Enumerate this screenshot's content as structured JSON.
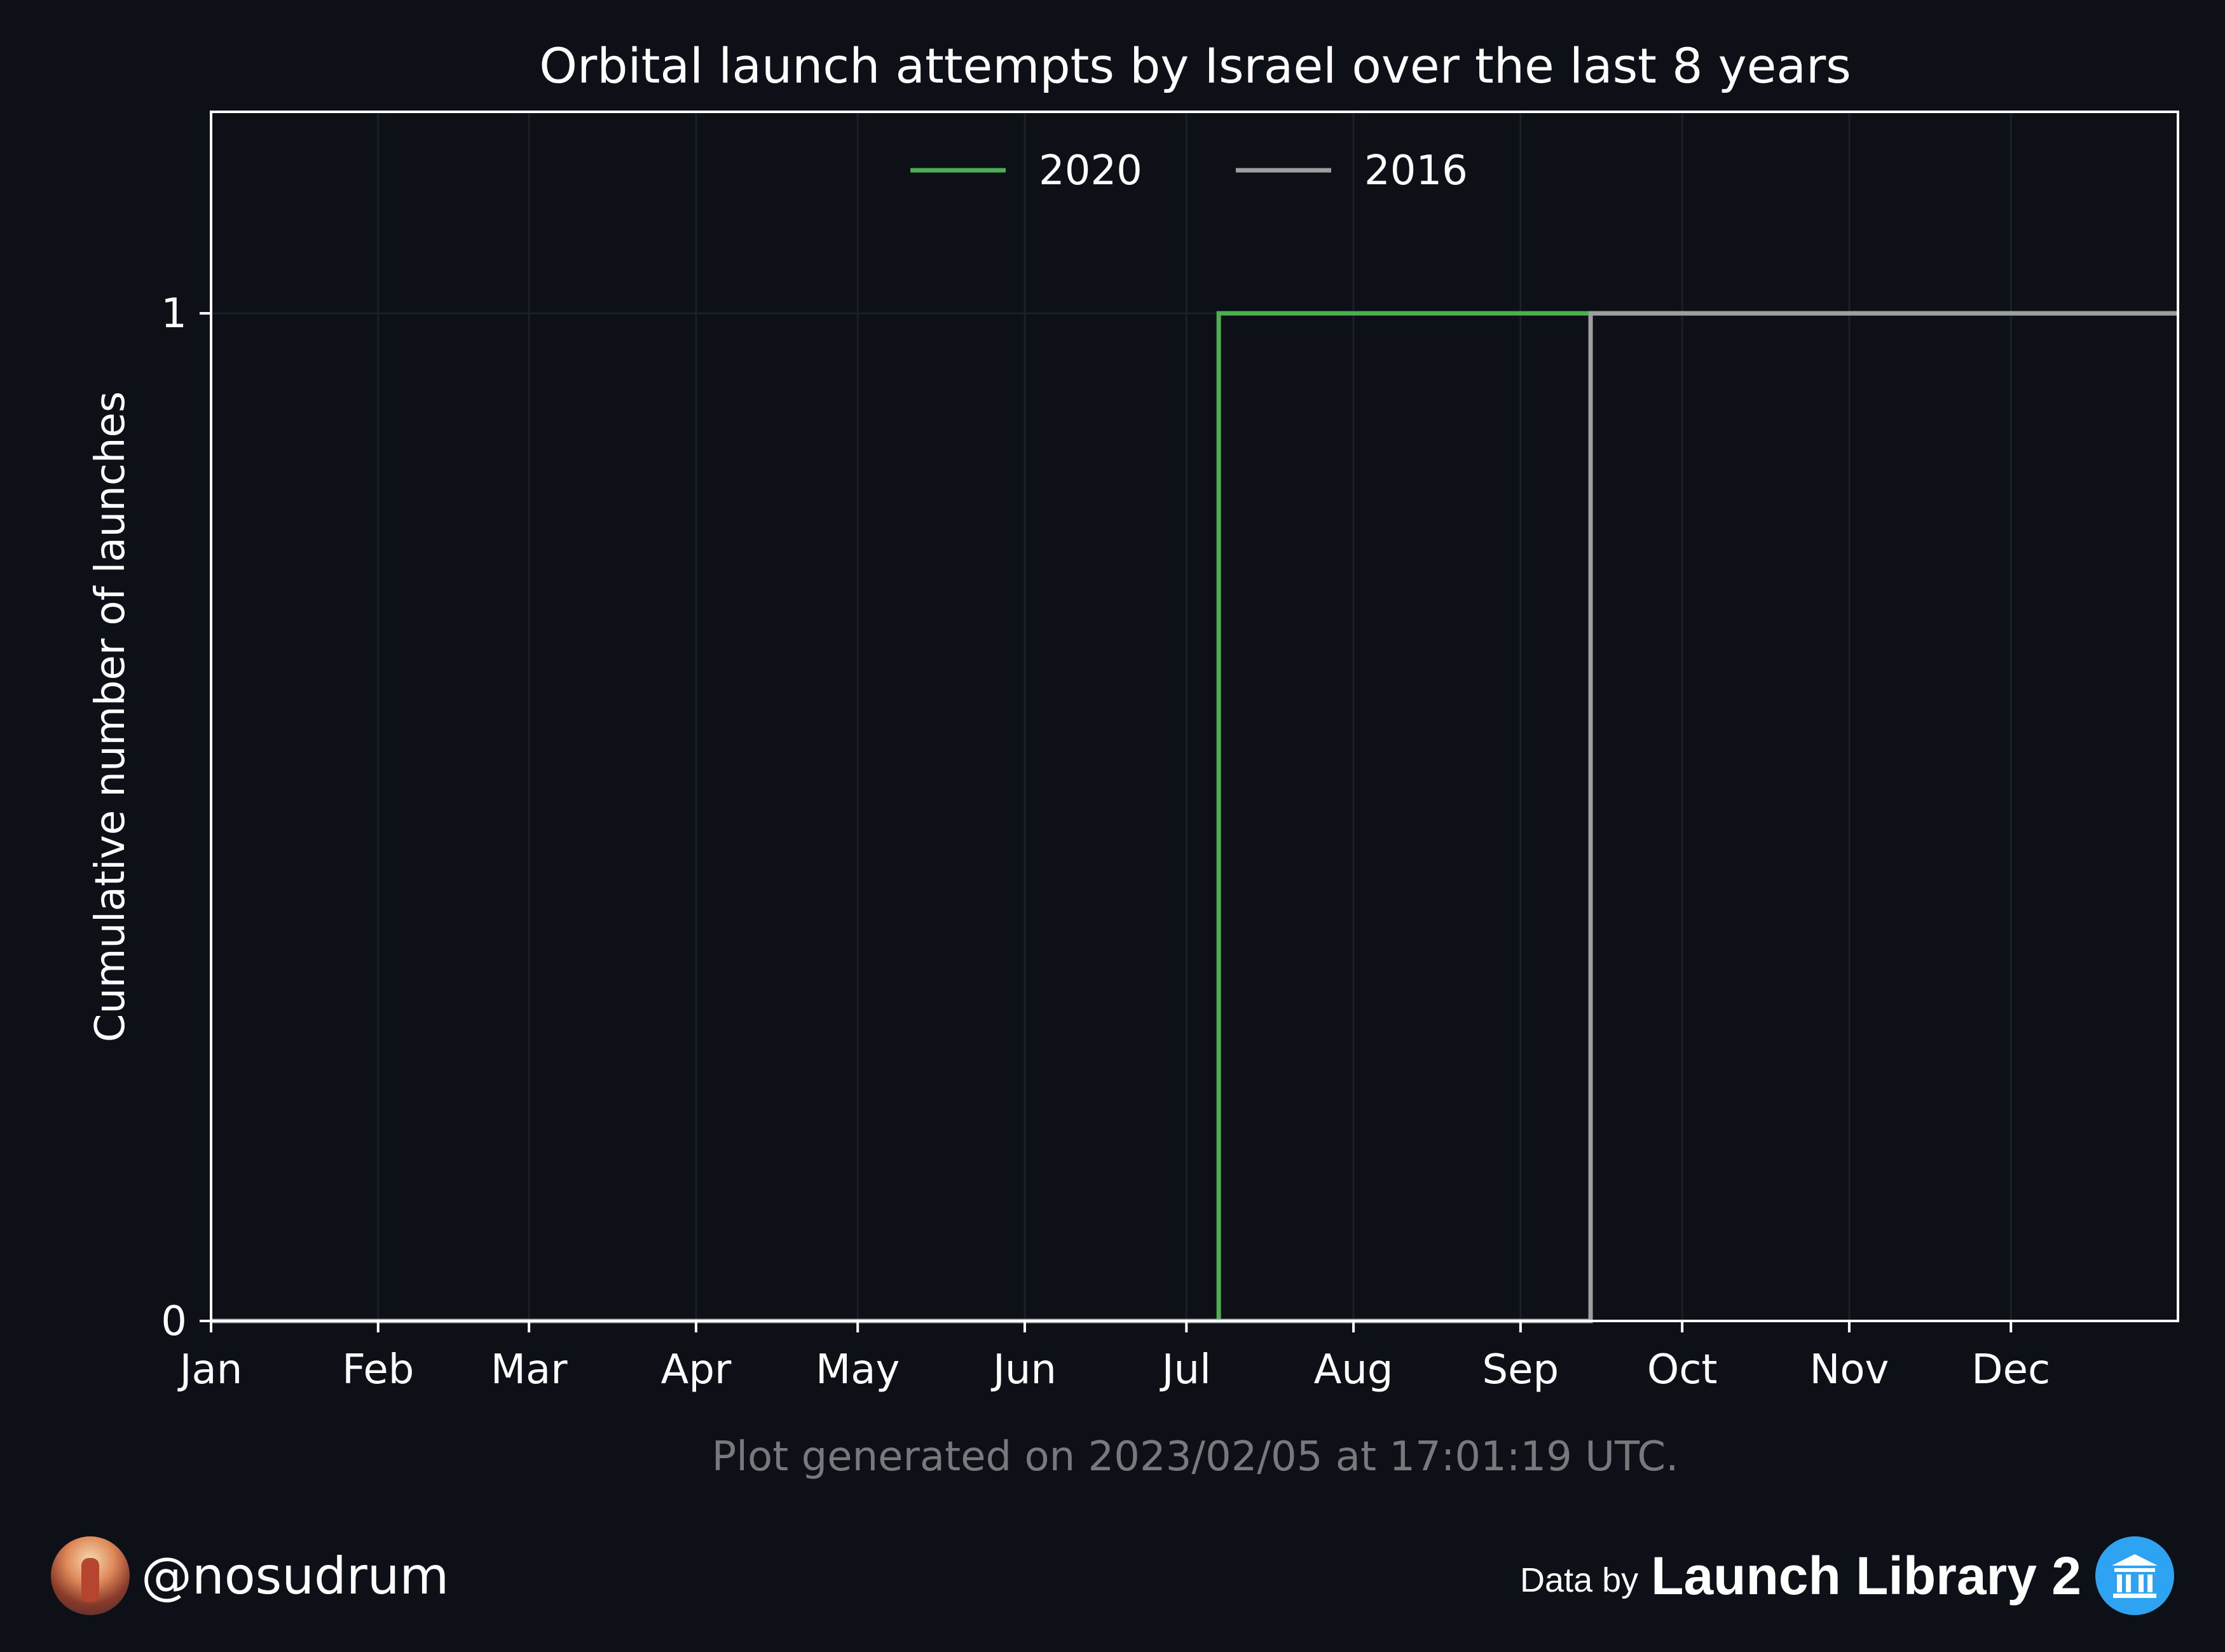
{
  "chart_data": {
    "type": "line",
    "step": true,
    "title": "Orbital launch attempts by Israel over the last 8 years",
    "xlabel": "",
    "ylabel": "Cumulative number of launches",
    "x_ticks": [
      "Jan",
      "Feb",
      "Mar",
      "Apr",
      "May",
      "Jun",
      "Jul",
      "Aug",
      "Sep",
      "Oct",
      "Nov",
      "Dec"
    ],
    "y_ticks": [
      0,
      1
    ],
    "xlim_day_of_year": [
      1,
      366
    ],
    "ylim": [
      0,
      1.2
    ],
    "grid": true,
    "legend_position": "top-center",
    "series": [
      {
        "name": "2020",
        "color": "#4caf50",
        "points": [
          [
            "2020-01-01",
            0
          ],
          [
            "2020-07-06",
            1
          ],
          [
            "2020-09-13",
            1
          ]
        ]
      },
      {
        "name": "2016",
        "color": "#9e9e9e",
        "points": [
          [
            "2016-01-01",
            0
          ],
          [
            "2016-09-13",
            1
          ],
          [
            "2016-12-31",
            1
          ]
        ]
      }
    ],
    "footnote": "Plot generated on 2023/02/05 at 17:01:19 UTC."
  },
  "footer": {
    "handle": "@nosudrum",
    "data_by": "Data by",
    "brand": "Launch Library 2",
    "brand_icon": "library-icon",
    "avatar_icon": "astronaut-avatar"
  },
  "colors": {
    "background": "#0d1017",
    "axes_face": "#0d1017",
    "grid": "#1b1f27"
  }
}
